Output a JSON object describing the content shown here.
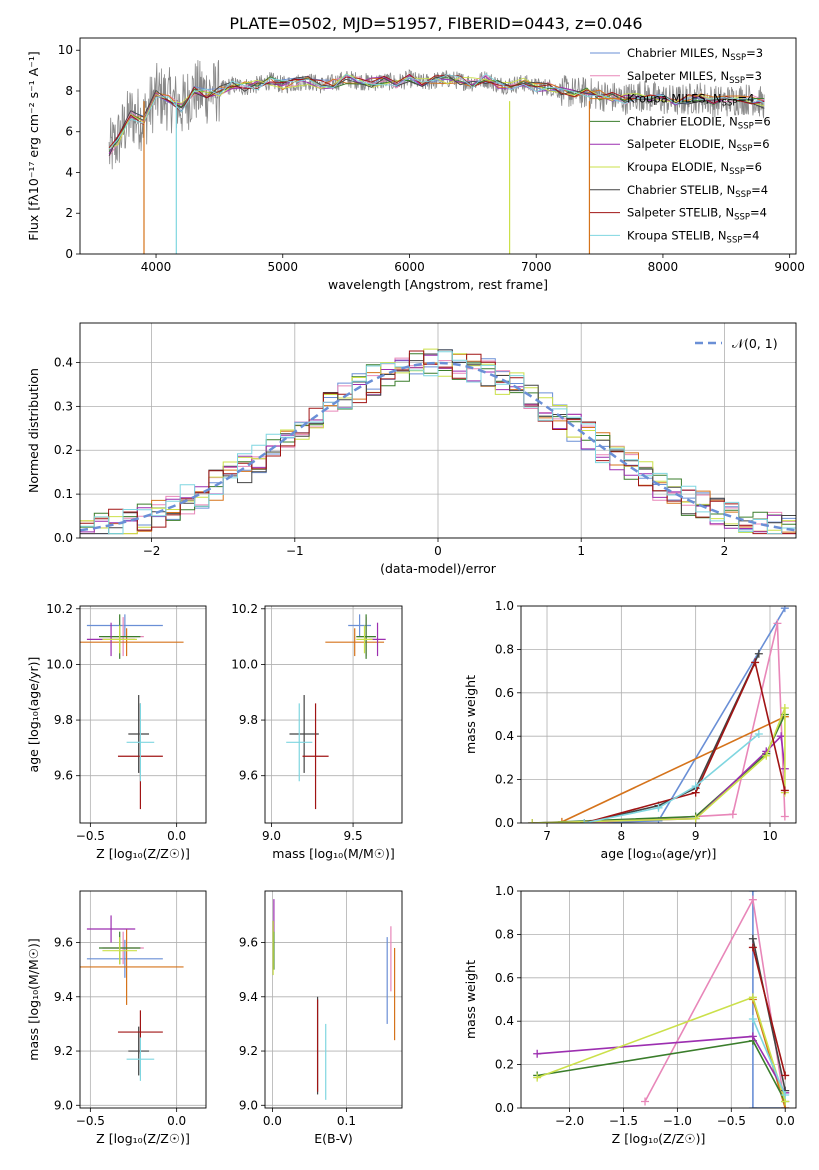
{
  "title": "PLATE=0502, MJD=51957, FIBERID=0443, z=0.046",
  "colors": [
    "#6a8fd6",
    "#e887b9",
    "#d5731b",
    "#3a7d2b",
    "#9c2fb0",
    "#cbe04a",
    "#444444",
    "#a01414",
    "#7fd6e0"
  ],
  "legend_spec": [
    {
      "label": "Chabrier MILES, N",
      "sub": "SSP",
      "tail": "=3"
    },
    {
      "label": "Salpeter MILES, N",
      "sub": "SSP",
      "tail": "=3"
    },
    {
      "label": "Kroupa MILES, N",
      "sub": "SSP",
      "tail": "=4"
    },
    {
      "label": "Chabrier ELODIE, N",
      "sub": "SSP",
      "tail": "=6"
    },
    {
      "label": "Salpeter ELODIE, N",
      "sub": "SSP",
      "tail": "=6"
    },
    {
      "label": "Kroupa ELODIE, N",
      "sub": "SSP",
      "tail": "=6"
    },
    {
      "label": "Chabrier STELIB, N",
      "sub": "SSP",
      "tail": "=4"
    },
    {
      "label": "Salpeter STELIB, N",
      "sub": "SSP",
      "tail": "=4"
    },
    {
      "label": "Kroupa STELIB, N",
      "sub": "SSP",
      "tail": "=4"
    }
  ],
  "chart_data": [
    {
      "id": "spectrum",
      "type": "line",
      "xlabel": "wavelength [Angstrom, rest frame]",
      "ylabel": "Flux [fλ10⁻¹⁷ erg cm⁻² s⁻¹ A⁻¹]",
      "xlim": [
        3400,
        9050
      ],
      "ylim": [
        0,
        10.6
      ],
      "xticks": [
        4000,
        5000,
        6000,
        7000,
        8000,
        9000
      ],
      "yticks": [
        0,
        2,
        4,
        6,
        8,
        10
      ],
      "data_series": {
        "name": "data",
        "color": "#888888",
        "x": [
          3630,
          3700,
          3800,
          3900,
          4000,
          4100,
          4200,
          4300,
          4400,
          4500,
          4600,
          4700,
          4800,
          4900,
          5000,
          5100,
          5200,
          5300,
          5400,
          5500,
          5600,
          5700,
          5800,
          5900,
          6000,
          6100,
          6200,
          6300,
          6400,
          6500,
          6600,
          6700,
          6800,
          6900,
          7000,
          7100,
          7200,
          7300,
          7400,
          7500,
          7600,
          7700,
          7800,
          7900,
          8000,
          8100,
          8200,
          8300,
          8400,
          8500,
          8600,
          8700,
          8800
        ],
        "y": [
          5.0,
          5.6,
          6.8,
          6.6,
          7.8,
          7.6,
          7.2,
          8.0,
          7.9,
          8.0,
          8.3,
          8.2,
          8.3,
          8.5,
          8.3,
          8.4,
          8.5,
          8.3,
          8.4,
          8.6,
          8.5,
          8.4,
          8.5,
          8.4,
          8.6,
          8.4,
          8.5,
          8.6,
          8.5,
          8.4,
          8.6,
          8.3,
          8.3,
          8.4,
          8.2,
          8.2,
          8.0,
          7.9,
          7.9,
          7.8,
          7.7,
          7.6,
          7.8,
          7.7,
          7.6,
          7.5,
          7.6,
          7.7,
          7.5,
          7.5,
          7.6,
          7.6,
          7.4
        ]
      }
    },
    {
      "id": "residual-histogram",
      "type": "line",
      "xlabel": "(data-model)/error",
      "ylabel": "Normed distribution",
      "xlim": [
        -2.5,
        2.5
      ],
      "ylim": [
        0,
        0.49
      ],
      "xticks": [
        -2,
        -1,
        0,
        1,
        2
      ],
      "yticks": [
        0.0,
        0.1,
        0.2,
        0.3,
        0.4
      ],
      "series": [
        {
          "name": "𝒩(0, 1)",
          "color": "#6a8fd6",
          "style": "dashed",
          "mu": 0,
          "sigma": 1
        }
      ]
    },
    {
      "id": "age-vs-Z",
      "type": "scatter",
      "xlabel": "Z [log₁₀(Z/Z☉)]",
      "ylabel": "age  [log₁₀(age/yr)]",
      "xlim": [
        -0.56,
        0.17
      ],
      "ylim": [
        9.43,
        10.21
      ],
      "xticks": [
        -0.5,
        0.0
      ],
      "yticks": [
        9.6,
        9.8,
        10.0,
        10.2
      ],
      "points": [
        {
          "x": -0.3,
          "y": 10.14,
          "xerr": 0.22,
          "yerr": 0.04,
          "color": "#6a8fd6"
        },
        {
          "x": -0.31,
          "y": 10.1,
          "xerr": 0.12,
          "yerr": 0.07,
          "color": "#e887b9"
        },
        {
          "x": -0.29,
          "y": 10.08,
          "xerr": 0.33,
          "yerr": 0.05,
          "color": "#d5731b"
        },
        {
          "x": -0.33,
          "y": 10.1,
          "xerr": 0.12,
          "yerr": 0.08,
          "color": "#3a7d2b"
        },
        {
          "x": -0.38,
          "y": 10.09,
          "xerr": 0.14,
          "yerr": 0.06,
          "color": "#9c2fb0"
        },
        {
          "x": -0.33,
          "y": 10.09,
          "xerr": 0.1,
          "yerr": 0.05,
          "color": "#cbe04a"
        },
        {
          "x": -0.22,
          "y": 9.75,
          "xerr": 0.06,
          "yerr": 0.14,
          "color": "#444444"
        },
        {
          "x": -0.21,
          "y": 9.67,
          "xerr": 0.13,
          "yerr": 0.19,
          "color": "#a01414"
        },
        {
          "x": -0.21,
          "y": 9.72,
          "xerr": 0.08,
          "yerr": 0.14,
          "color": "#7fd6e0"
        }
      ]
    },
    {
      "id": "age-vs-mass",
      "type": "scatter",
      "xlabel": "mass [log₁₀(M/M☉)]",
      "ylabel": "",
      "xlim": [
        8.96,
        9.8
      ],
      "ylim": [
        9.43,
        10.21
      ],
      "xticks": [
        9.0,
        9.5
      ],
      "yticks": [
        9.6,
        9.8,
        10.0,
        10.2
      ],
      "points": [
        {
          "x": 9.54,
          "y": 10.14,
          "xerr": 0.07,
          "yerr": 0.04,
          "color": "#6a8fd6"
        },
        {
          "x": 9.58,
          "y": 10.1,
          "xerr": 0.06,
          "yerr": 0.07,
          "color": "#e887b9"
        },
        {
          "x": 9.51,
          "y": 10.08,
          "xerr": 0.18,
          "yerr": 0.05,
          "color": "#d5731b"
        },
        {
          "x": 9.58,
          "y": 10.1,
          "xerr": 0.06,
          "yerr": 0.08,
          "color": "#3a7d2b"
        },
        {
          "x": 9.65,
          "y": 10.09,
          "xerr": 0.05,
          "yerr": 0.06,
          "color": "#9c2fb0"
        },
        {
          "x": 9.57,
          "y": 10.09,
          "xerr": 0.05,
          "yerr": 0.05,
          "color": "#cbe04a"
        },
        {
          "x": 9.2,
          "y": 9.75,
          "xerr": 0.09,
          "yerr": 0.14,
          "color": "#444444"
        },
        {
          "x": 9.27,
          "y": 9.67,
          "xerr": 0.08,
          "yerr": 0.19,
          "color": "#a01414"
        },
        {
          "x": 9.17,
          "y": 9.72,
          "xerr": 0.08,
          "yerr": 0.14,
          "color": "#7fd6e0"
        }
      ]
    },
    {
      "id": "massweight-vs-age",
      "type": "line",
      "xlabel": "age  [log₁₀(age/yr)]",
      "ylabel": "mass weight",
      "xlim": [
        6.65,
        10.35
      ],
      "ylim": [
        0,
        1.0
      ],
      "xticks": [
        7,
        8,
        9,
        10
      ],
      "yticks": [
        0.0,
        0.2,
        0.4,
        0.6,
        0.8,
        1.0
      ],
      "series": [
        {
          "color": "#6a8fd6",
          "x": [
            7.5,
            8.5,
            10.2
          ],
          "y": [
            0.0,
            0.01,
            0.99
          ]
        },
        {
          "color": "#e887b9",
          "x": [
            7.5,
            9.5,
            10.1,
            10.2
          ],
          "y": [
            0.0,
            0.04,
            0.92,
            0.03
          ]
        },
        {
          "color": "#d5731b",
          "x": [
            7.2,
            10.2
          ],
          "y": [
            0.005,
            0.49
          ]
        },
        {
          "color": "#3a7d2b",
          "x": [
            6.8,
            9.0,
            9.95,
            10.2
          ],
          "y": [
            0.0,
            0.03,
            0.32,
            0.5
          ]
        },
        {
          "color": "#9c2fb0",
          "x": [
            6.8,
            9.0,
            9.95,
            10.15,
            10.2
          ],
          "y": [
            0.0,
            0.02,
            0.33,
            0.4,
            0.25
          ]
        },
        {
          "color": "#cbe04a",
          "x": [
            6.8,
            9.0,
            9.95,
            10.2,
            10.2
          ],
          "y": [
            0.0,
            0.02,
            0.31,
            0.53,
            0.14
          ]
        },
        {
          "color": "#444444",
          "x": [
            7.5,
            8.5,
            9.0,
            9.85
          ],
          "y": [
            0.0,
            0.08,
            0.16,
            0.78
          ]
        },
        {
          "color": "#a01414",
          "x": [
            7.5,
            9.0,
            9.8,
            10.2
          ],
          "y": [
            0.0,
            0.14,
            0.74,
            0.15
          ]
        },
        {
          "color": "#7fd6e0",
          "x": [
            7.5,
            8.5,
            9.0,
            9.85
          ],
          "y": [
            0.0,
            0.07,
            0.17,
            0.41
          ]
        }
      ]
    },
    {
      "id": "mass-vs-Z",
      "type": "scatter",
      "xlabel": "Z [log₁₀(Z/Z☉)]",
      "ylabel": "mass [log₁₀(M/M☉)]",
      "xlim": [
        -0.56,
        0.17
      ],
      "ylim": [
        8.99,
        9.79
      ],
      "xticks": [
        -0.5,
        0.0
      ],
      "yticks": [
        9.0,
        9.2,
        9.4,
        9.6
      ],
      "points": [
        {
          "x": -0.3,
          "y": 9.54,
          "xerr": 0.22,
          "yerr": 0.07,
          "color": "#6a8fd6"
        },
        {
          "x": -0.31,
          "y": 9.58,
          "xerr": 0.12,
          "yerr": 0.06,
          "color": "#e887b9"
        },
        {
          "x": -0.29,
          "y": 9.51,
          "xerr": 0.33,
          "yerr": 0.14,
          "color": "#d5731b"
        },
        {
          "x": -0.33,
          "y": 9.58,
          "xerr": 0.12,
          "yerr": 0.06,
          "color": "#3a7d2b"
        },
        {
          "x": -0.38,
          "y": 9.65,
          "xerr": 0.14,
          "yerr": 0.05,
          "color": "#9c2fb0"
        },
        {
          "x": -0.33,
          "y": 9.57,
          "xerr": 0.1,
          "yerr": 0.05,
          "color": "#cbe04a"
        },
        {
          "x": -0.22,
          "y": 9.2,
          "xerr": 0.06,
          "yerr": 0.09,
          "color": "#444444"
        },
        {
          "x": -0.21,
          "y": 9.27,
          "xerr": 0.13,
          "yerr": 0.08,
          "color": "#a01414"
        },
        {
          "x": -0.21,
          "y": 9.17,
          "xerr": 0.08,
          "yerr": 0.08,
          "color": "#7fd6e0"
        }
      ]
    },
    {
      "id": "mass-vs-EBV",
      "type": "scatter",
      "xlabel": "E(B-V)",
      "ylabel": "",
      "xlim": [
        -0.01,
        0.175
      ],
      "ylim": [
        8.99,
        9.79
      ],
      "xticks": [
        0.0,
        0.1
      ],
      "yticks": [
        9.0,
        9.2,
        9.4,
        9.6
      ],
      "points": [
        {
          "x": 0.155,
          "y": 9.46,
          "xerr": 0.0,
          "yerr": 0.16,
          "color": "#6a8fd6"
        },
        {
          "x": 0.16,
          "y": 9.54,
          "xerr": 0.0,
          "yerr": 0.12,
          "color": "#e887b9"
        },
        {
          "x": 0.165,
          "y": 9.41,
          "xerr": 0.0,
          "yerr": 0.17,
          "color": "#d5731b"
        },
        {
          "x": 0.002,
          "y": 9.58,
          "xerr": 0.0,
          "yerr": 0.08,
          "color": "#3a7d2b"
        },
        {
          "x": 0.002,
          "y": 9.7,
          "xerr": 0.0,
          "yerr": 0.06,
          "color": "#9c2fb0"
        },
        {
          "x": 0.001,
          "y": 9.58,
          "xerr": 0.0,
          "yerr": 0.1,
          "color": "#cbe04a"
        },
        {
          "x": 0.061,
          "y": 9.22,
          "xerr": 0.0,
          "yerr": 0.18,
          "color": "#444444"
        },
        {
          "x": 0.061,
          "y": 9.22,
          "xerr": 0.0,
          "yerr": 0.17,
          "color": "#a01414"
        },
        {
          "x": 0.072,
          "y": 9.16,
          "xerr": 0.0,
          "yerr": 0.14,
          "color": "#7fd6e0"
        }
      ]
    },
    {
      "id": "massweight-vs-Z",
      "type": "line",
      "xlabel": "Z [log₁₀(Z/Z☉)]",
      "ylabel": "mass weight",
      "xlim": [
        -2.45,
        0.1
      ],
      "ylim": [
        0,
        1.0
      ],
      "xticks": [
        -2.0,
        -1.5,
        -1.0,
        -0.5,
        0.0
      ],
      "yticks": [
        0.0,
        0.2,
        0.4,
        0.6,
        0.8,
        1.0
      ],
      "series": [
        {
          "color": "#6a8fd6",
          "x": [
            -0.3,
            -0.3,
            0.0
          ],
          "y": [
            1.0,
            0.0,
            0.0
          ]
        },
        {
          "color": "#e887b9",
          "x": [
            -1.3,
            -0.3,
            0.0
          ],
          "y": [
            0.03,
            0.96,
            0.0
          ]
        },
        {
          "color": "#d5731b",
          "x": [
            -0.3,
            0.0
          ],
          "y": [
            0.5,
            0.0
          ]
        },
        {
          "color": "#3a7d2b",
          "x": [
            -2.3,
            -0.3,
            0.0
          ],
          "y": [
            0.15,
            0.31,
            0.03
          ]
        },
        {
          "color": "#9c2fb0",
          "x": [
            -2.3,
            -0.3,
            0.0
          ],
          "y": [
            0.25,
            0.33,
            0.07
          ]
        },
        {
          "color": "#cbe04a",
          "x": [
            -2.3,
            -0.3,
            0.0
          ],
          "y": [
            0.14,
            0.51,
            0.03
          ]
        },
        {
          "color": "#444444",
          "x": [
            -0.3,
            0.0
          ],
          "y": [
            0.78,
            0.08
          ]
        },
        {
          "color": "#a01414",
          "x": [
            -0.3,
            0.0
          ],
          "y": [
            0.74,
            0.15
          ]
        },
        {
          "color": "#7fd6e0",
          "x": [
            -0.3,
            0.0
          ],
          "y": [
            0.41,
            0.06
          ]
        }
      ]
    }
  ]
}
